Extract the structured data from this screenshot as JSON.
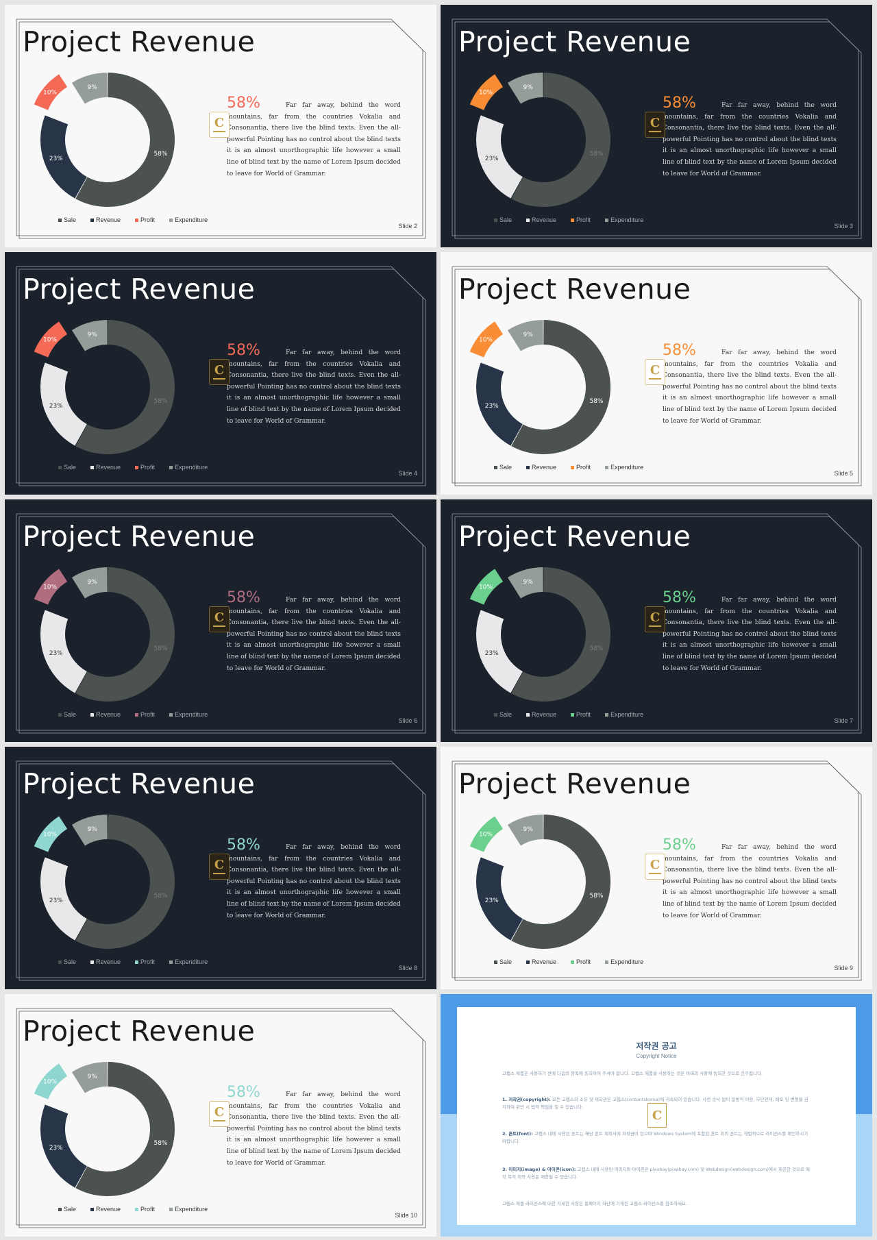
{
  "theme_colors": {
    "dark_background": "#1b222c",
    "light_background": "#f8f8f8",
    "dark_navy_segment": "#283548",
    "gray_segment": "#4b524f",
    "light_gray_segment": "#959d99",
    "white_segment": "#e8e8ea"
  },
  "slides": [
    {
      "title": "Project Revenue",
      "pct": "58%",
      "slide_label": "Slide 2",
      "theme": "light",
      "accent": "#f46a57"
    },
    {
      "title": "Project Revenue",
      "pct": "58%",
      "slide_label": "Slide 3",
      "theme": "dark",
      "accent": "#f98d36"
    },
    {
      "title": "Project Revenue",
      "pct": "58%",
      "slide_label": "Slide 4",
      "theme": "dark",
      "accent": "#f46a57"
    },
    {
      "title": "Project Revenue",
      "pct": "58%",
      "slide_label": "Slide 5",
      "theme": "light",
      "accent": "#f98d36"
    },
    {
      "title": "Project Revenue",
      "pct": "58%",
      "slide_label": "Slide 6",
      "theme": "dark",
      "accent": "#b06d80"
    },
    {
      "title": "Project Revenue",
      "pct": "58%",
      "slide_label": "Slide 7",
      "theme": "dark",
      "accent": "#6bcf8e"
    },
    {
      "title": "Project Revenue",
      "pct": "58%",
      "slide_label": "Slide 8",
      "theme": "dark",
      "accent": "#8fd6d0"
    },
    {
      "title": "Project Revenue",
      "pct": "58%",
      "slide_label": "Slide 9",
      "theme": "light",
      "accent": "#6bcf8e"
    },
    {
      "title": "Project Revenue",
      "pct": "58%",
      "slide_label": "Slide  10",
      "theme": "light",
      "accent": "#8fd6d0"
    }
  ],
  "body_text": "Far far away, behind the word mountains, far from the countries Vokalia and Consonantia, there live the blind texts. Even the all-powerful Pointing has no control about the blind texts it is an almost unorthographic life however a small line of blind text by the name of Lorem Ipsum decided to leave for World of Grammar.",
  "chart_data": {
    "type": "pie",
    "variant": "donut",
    "categories": [
      "Sale",
      "Revenue",
      "Profit",
      "Expenditure"
    ],
    "values": [
      58,
      23,
      10,
      9
    ],
    "data_labels": [
      "58%",
      "23%",
      "10%",
      "9%"
    ],
    "legend": [
      "Sale",
      "Revenue",
      "Profit",
      "Expenditure"
    ],
    "legend_position": "bottom",
    "exploded": "Profit"
  },
  "copyright": {
    "title": "저작권 공고",
    "subtitle": "Copyright Notice",
    "intro": "고랩스 제품은 사용하기 전에 다음의 항목에 동의하여 주셔야 합니다. 고랩스 제품을 사용하는 것은 아래의 사항에 동의한 것으로 간주됩니다.",
    "item1_head": "1. 저작권(copyright):",
    "item1_text": "모든 고랩스의 소유 및 제작권은 고랩스(contentskorea)에 귀속되어 있습니다. 사전 승낙 없이 일방적 이용, 무단전재, 배포 및 변형을 금지하며 위반 시 법적 책임을 질 수 있습니다.",
    "item2_head": "2. 폰트(font):",
    "item2_text": "고랩스 내에 사용된 폰트는 해당 폰트 제작사에 저작권이 있으며 Windows System에 포함된 폰트 외의 폰트는 개별적으로 라이선스를 확인하시기 바랍니다.",
    "item3_head": "3. 이미지(image) & 아이콘(icon):",
    "item3_text": "고랩스 내에 사용된 이미지와 아이콘은 pixabay(pixabay.com) 및 Webdesign(webdesign.com)에서 제공한 것으로 제작 목적 외의 사용은 제한될 수 있습니다.",
    "outro": "고랩스 제품 라이선스에 대한 자세한 사항은 홈페이지 하단에 기재된 고랩스 라이선스를 참조하세요."
  }
}
